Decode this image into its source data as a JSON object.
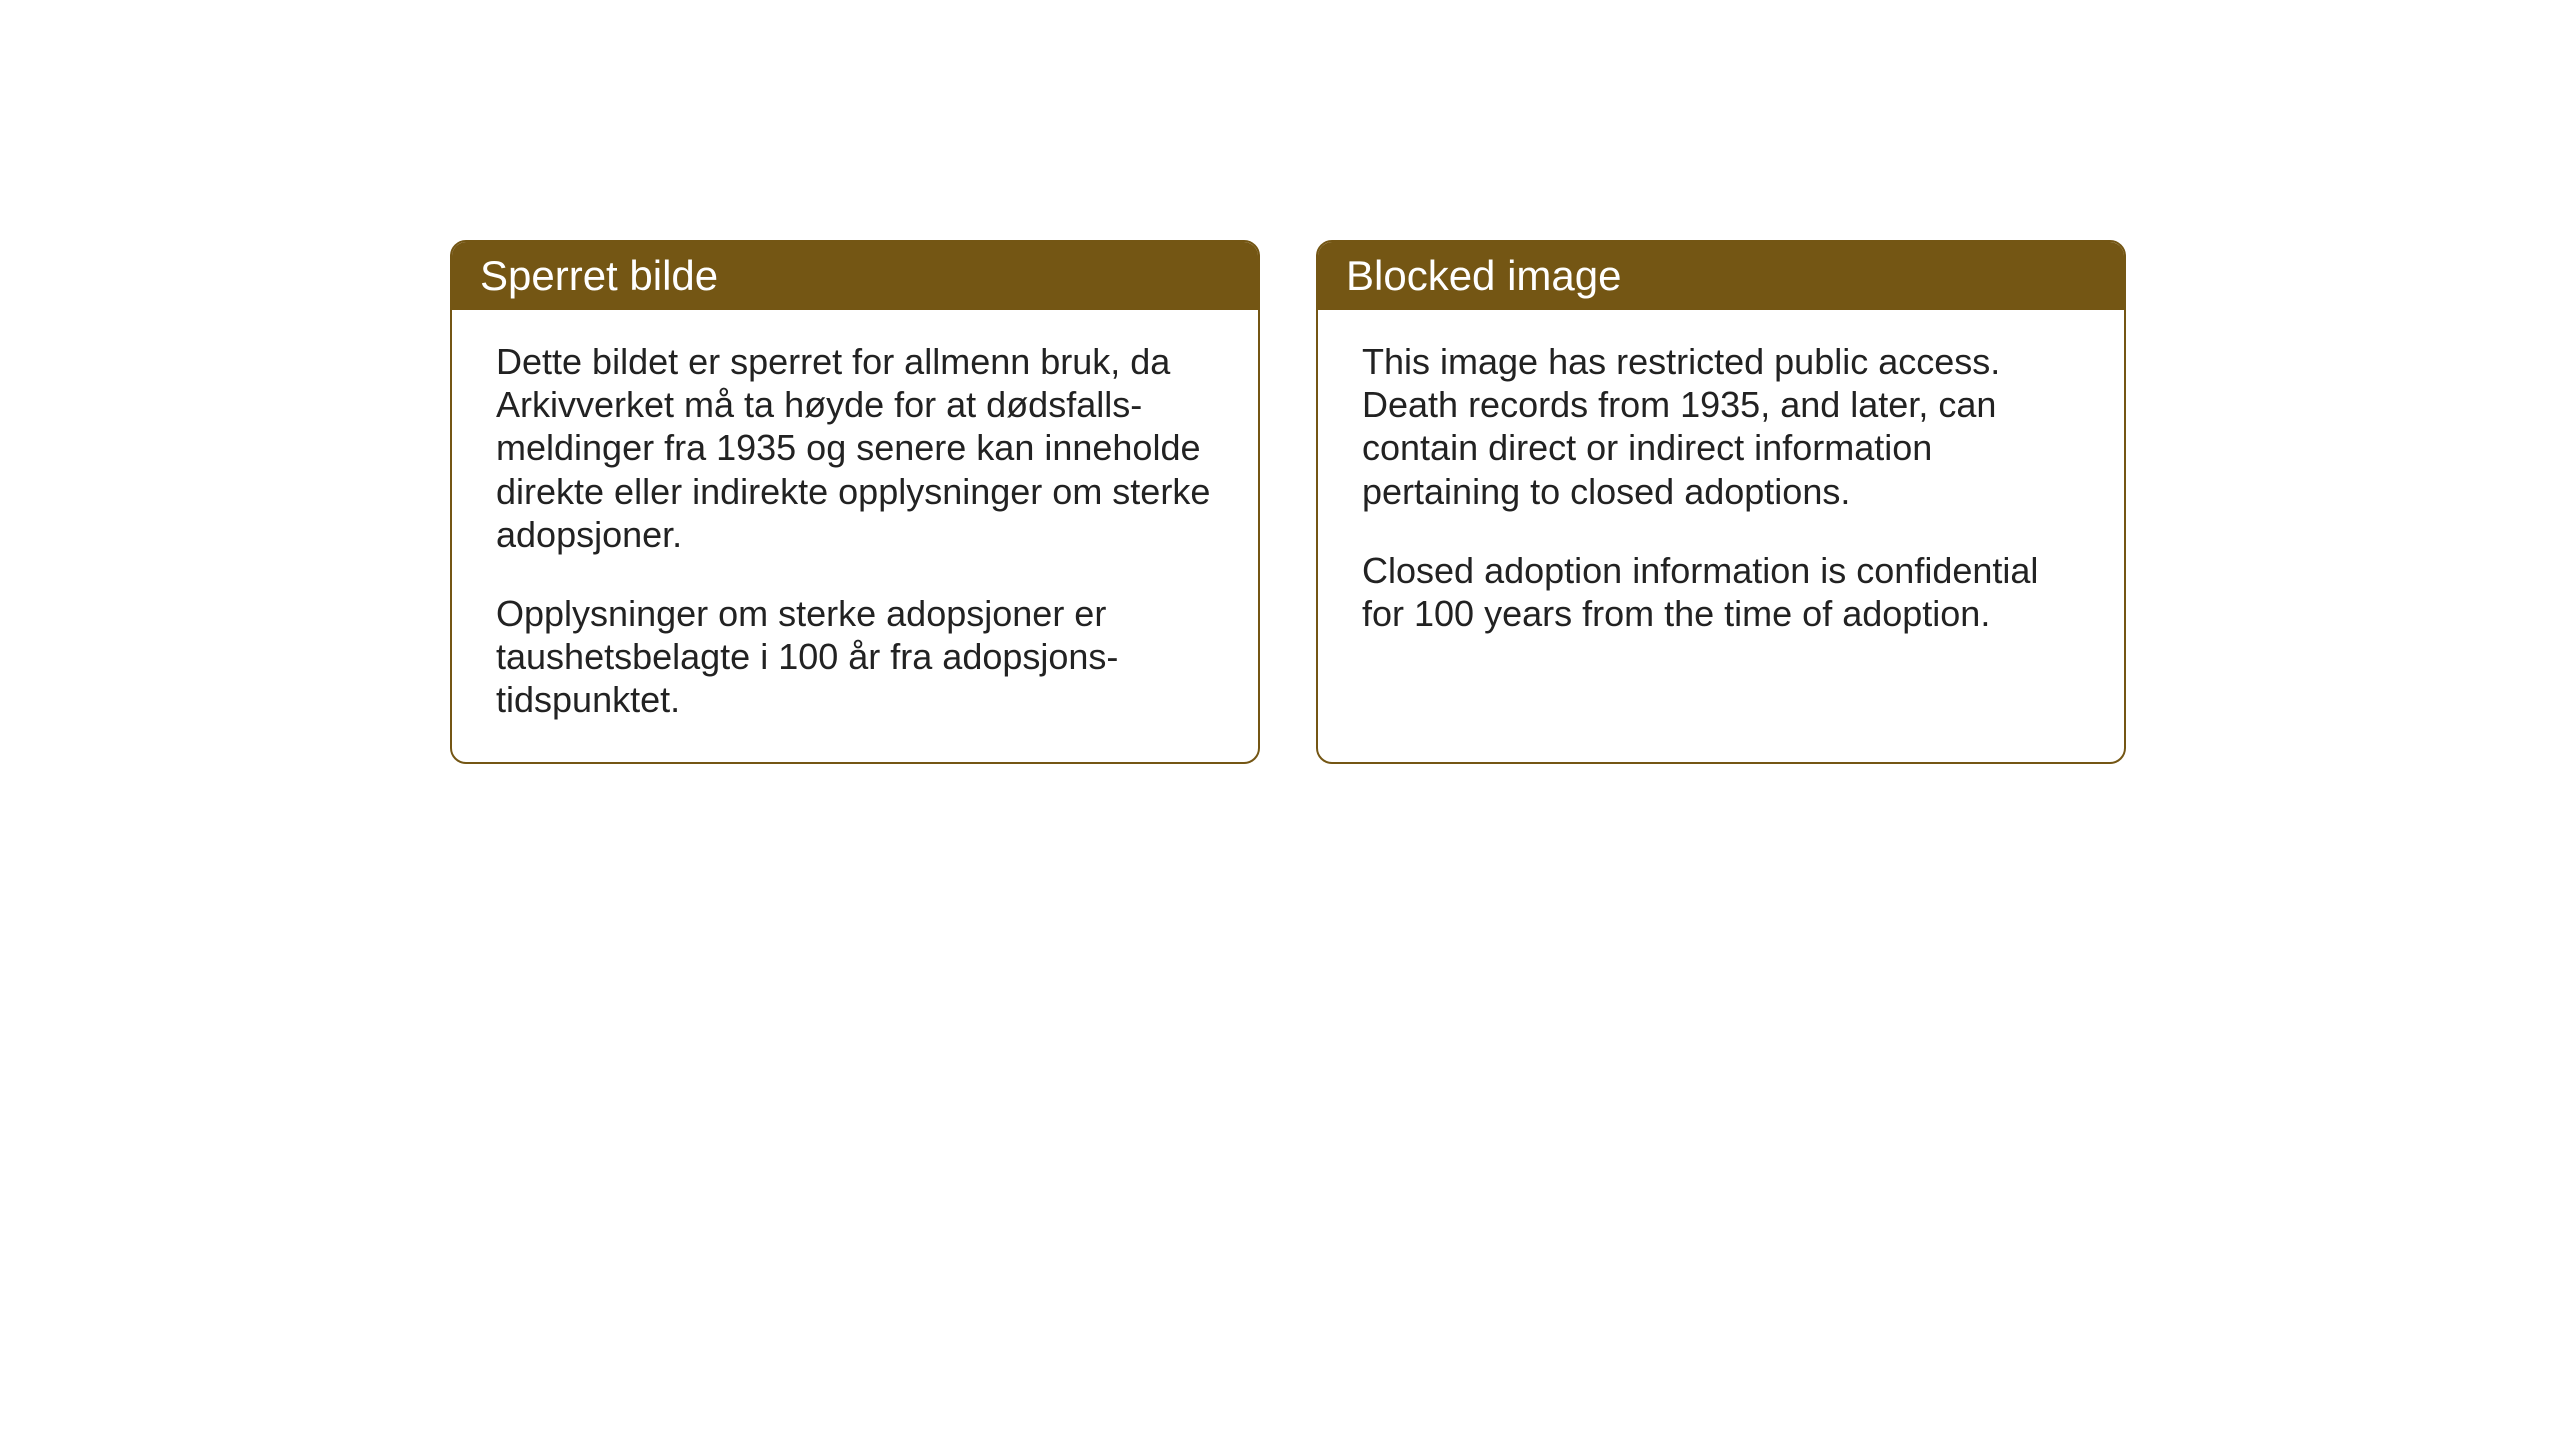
{
  "layout": {
    "background_color": "#ffffff",
    "card_border_color": "#745614",
    "card_header_bg": "#745614",
    "card_header_text_color": "#ffffff",
    "card_body_text_color": "#222222",
    "card_border_radius": 16,
    "header_fontsize": 42,
    "body_fontsize": 36
  },
  "cards": [
    {
      "title": "Sperret bilde",
      "paragraph1": "Dette bildet er sperret for allmenn bruk, da Arkivverket må ta høyde for at dødsfalls-meldinger fra 1935 og senere kan inneholde direkte eller indirekte opplysninger om sterke adopsjoner.",
      "paragraph2": "Opplysninger om sterke adopsjoner er taushetsbelagte i 100 år fra adopsjons-tidspunktet."
    },
    {
      "title": "Blocked image",
      "paragraph1": "This image has restricted public access. Death records from 1935, and later, can contain direct or indirect information pertaining to closed adoptions.",
      "paragraph2": "Closed adoption information is confidential for 100 years from the time of adoption."
    }
  ]
}
